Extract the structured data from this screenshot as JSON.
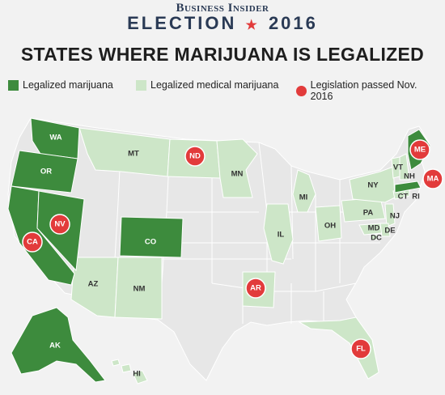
{
  "header": {
    "brand": "Business Insider",
    "election_word": "ELECTION",
    "election_year": "2016",
    "title": "STATES WHERE MARIJUANA IS LEGALIZED"
  },
  "legend": {
    "legal": "Legalized marijuana",
    "medical": "Legalized medical marijuana",
    "passed": "Legislation passed Nov. 2016"
  },
  "colors": {
    "legal": "#3d8b3d",
    "medical": "#cde6c8",
    "other": "#e7e7e7",
    "passed": "#e23b3b"
  },
  "labels": {
    "WA": "WA",
    "OR": "OR",
    "CA": "CA",
    "NV": "NV",
    "AK": "AK",
    "CO": "CO",
    "MT": "MT",
    "ND": "ND",
    "MN": "MN",
    "MI": "MI",
    "IL": "IL",
    "OH": "OH",
    "PA": "PA",
    "NY": "NY",
    "VT": "VT",
    "NH": "NH",
    "ME": "ME",
    "MA": "MA",
    "CT": "CT",
    "RI": "RI",
    "NJ": "NJ",
    "MD": "MD",
    "DE": "DE",
    "DC": "DC",
    "AZ": "AZ",
    "NM": "NM",
    "AR": "AR",
    "FL": "FL",
    "HI": "HI"
  },
  "states": {
    "legal": [
      "WA",
      "OR",
      "CA",
      "NV",
      "AK",
      "CO",
      "ME",
      "MA"
    ],
    "medical": [
      "MT",
      "ND",
      "MN",
      "MI",
      "IL",
      "OH",
      "PA",
      "NY",
      "VT",
      "NH",
      "CT",
      "RI",
      "NJ",
      "MD",
      "DE",
      "DC",
      "AZ",
      "NM",
      "AR",
      "FL",
      "HI"
    ],
    "passed_nov_2016": [
      "CA",
      "NV",
      "ME",
      "MA",
      "ND",
      "AR",
      "FL"
    ]
  }
}
